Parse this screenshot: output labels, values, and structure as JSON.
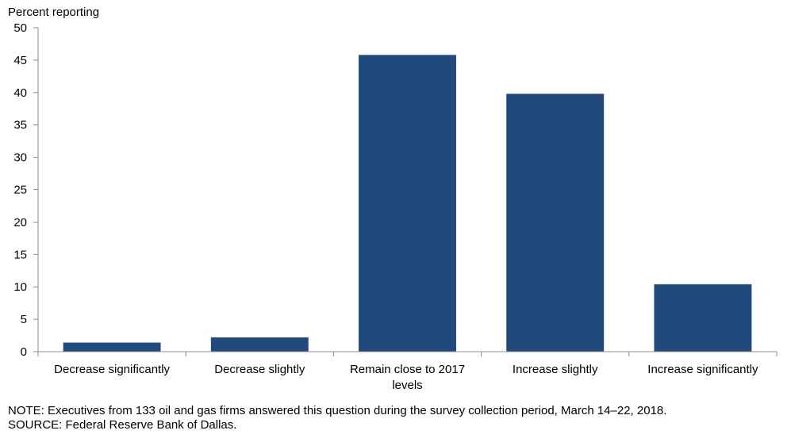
{
  "chart_data": {
    "type": "bar",
    "ylabel": "Percent reporting",
    "categories": [
      [
        "Decrease significantly"
      ],
      [
        "Decrease slightly"
      ],
      [
        "Remain close to 2017",
        "levels"
      ],
      [
        "Increase slightly"
      ],
      [
        "Increase significantly"
      ]
    ],
    "values": [
      1.4,
      2.2,
      45.8,
      39.8,
      10.4
    ],
    "ylim": [
      0,
      50
    ],
    "yticks": [
      0,
      5,
      10,
      15,
      20,
      25,
      30,
      35,
      40,
      45,
      50
    ],
    "bar_color": "#214A7C",
    "axis_color": "#8C8C8C",
    "grid": false,
    "legend": "none"
  },
  "footer": {
    "note": "NOTE:  Executives  from  133  oil  and  gas  firms  answered  this  question  during  the  survey  collection  period,  March  14–22,  2018.",
    "source": "SOURCE:  Federal  Reserve  Bank  of  Dallas."
  }
}
